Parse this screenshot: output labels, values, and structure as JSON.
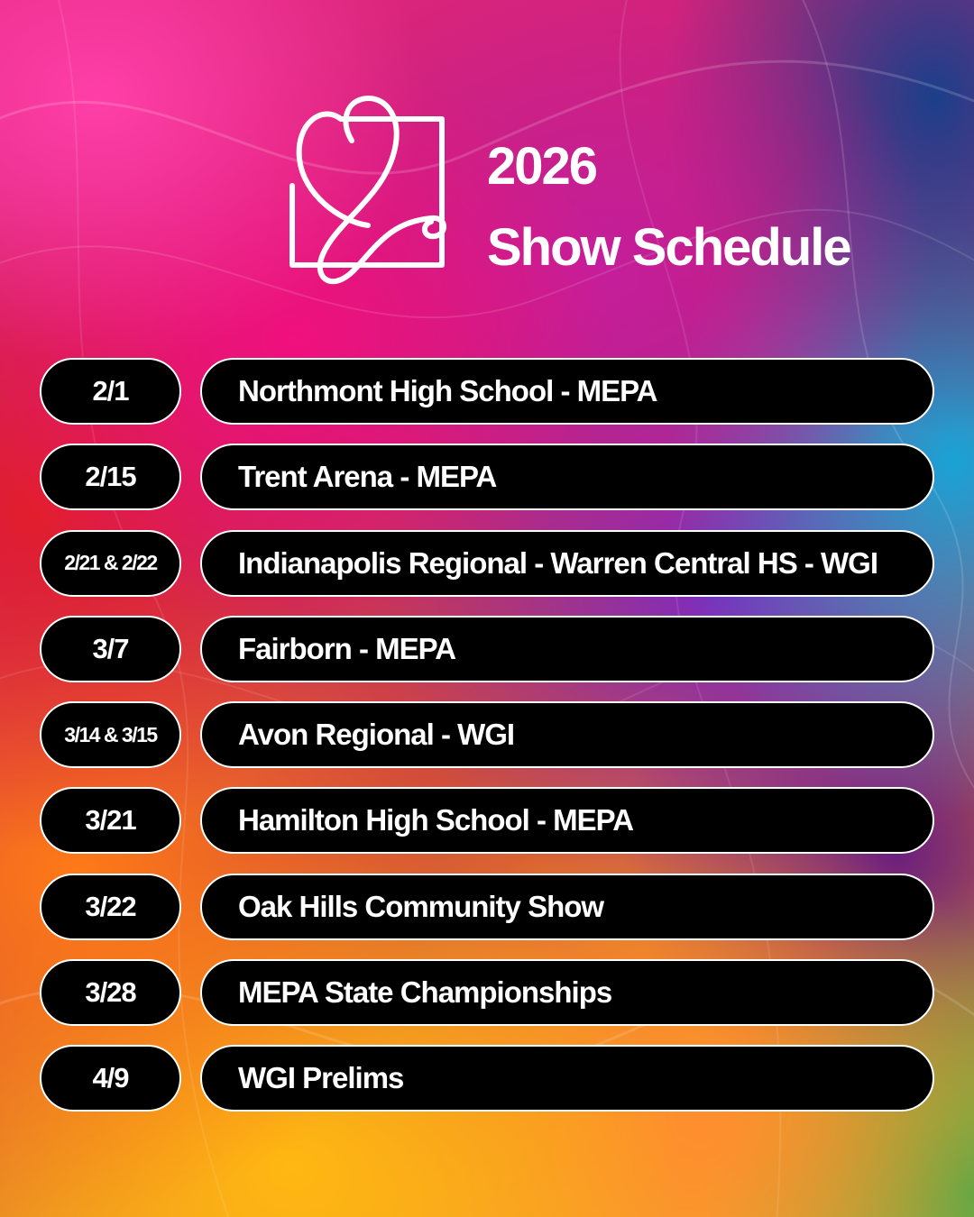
{
  "header": {
    "year": "2026",
    "title": "Show Schedule"
  },
  "colors": {
    "pill_background": "#000000",
    "pill_border": "#ffffff",
    "text": "#ffffff"
  },
  "logo": {
    "icon": "script-j-in-square-logo"
  },
  "schedule": [
    {
      "date": "2/1",
      "event": "Northmont High School - MEPA"
    },
    {
      "date": "2/15",
      "event": "Trent Arena - MEPA"
    },
    {
      "date": "2/21 & 2/22",
      "event": "Indianapolis Regional - Warren Central HS - WGI"
    },
    {
      "date": "3/7",
      "event": "Fairborn - MEPA"
    },
    {
      "date": "3/14 & 3/15",
      "event": "Avon Regional - WGI"
    },
    {
      "date": "3/21",
      "event": "Hamilton High School - MEPA"
    },
    {
      "date": "3/22",
      "event": "Oak Hills Community Show"
    },
    {
      "date": "3/28",
      "event": "MEPA State Championships"
    },
    {
      "date": "4/9",
      "event": "WGI Prelims"
    }
  ]
}
